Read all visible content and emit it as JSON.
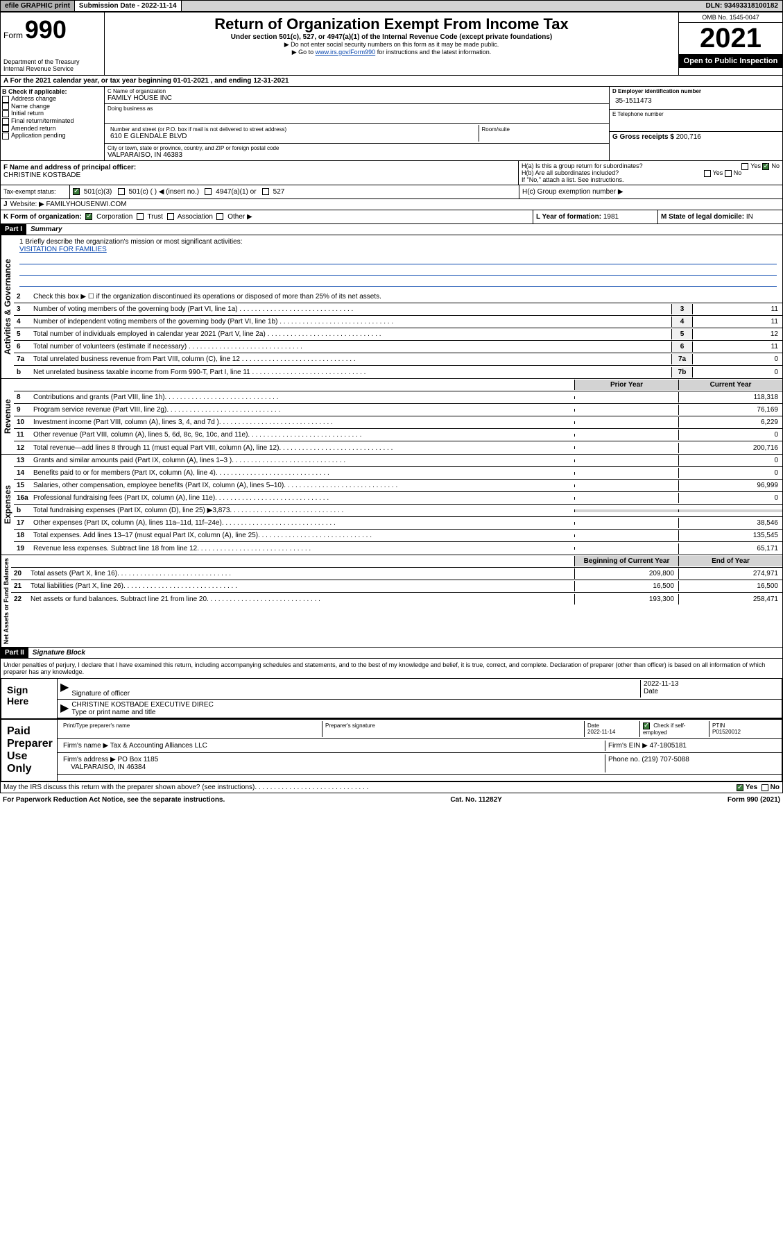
{
  "topbar": {
    "efile": "efile GRAPHIC print",
    "submission": "Submission Date - 2022-11-14",
    "dln": "DLN: 93493318100182"
  },
  "header": {
    "form": "Form",
    "num": "990",
    "dept": "Department of the Treasury\nInternal Revenue Service",
    "title": "Return of Organization Exempt From Income Tax",
    "sub1": "Under section 501(c), 527, or 4947(a)(1) of the Internal Revenue Code (except private foundations)",
    "sub2": "▶ Do not enter social security numbers on this form as it may be made public.",
    "sub3_pre": "▶ Go to ",
    "sub3_link": "www.irs.gov/Form990",
    "sub3_post": " for instructions and the latest information.",
    "omb": "OMB No. 1545-0047",
    "year": "2021",
    "open": "Open to Public Inspection"
  },
  "sectionA": {
    "text": "A For the 2021 calendar year, or tax year beginning 01-01-2021    , and ending 12-31-2021"
  },
  "colB": {
    "title": "B Check if applicable:",
    "items": [
      "Address change",
      "Name change",
      "Initial return",
      "Final return/terminated",
      "Amended return",
      "Application pending"
    ]
  },
  "colC": {
    "name_lbl": "C Name of organization",
    "name": "FAMILY HOUSE INC",
    "dba_lbl": "Doing business as",
    "street_lbl": "Number and street (or P.O. box if mail is not delivered to street address)",
    "room_lbl": "Room/suite",
    "street": "610 E GLENDALE BLVD",
    "city_lbl": "City or town, state or province, country, and ZIP or foreign postal code",
    "city": "VALPARAISO, IN  46383"
  },
  "colD": {
    "ein_lbl": "D Employer identification number",
    "ein": "35-1511473",
    "phone_lbl": "E Telephone number",
    "gross_lbl": "G Gross receipts $ ",
    "gross": "200,716"
  },
  "rowF": {
    "lbl": "F Name and address of principal officer:",
    "val": "CHRISTINE KOSTBADE"
  },
  "rowH": {
    "a": "H(a)  Is this a group return for subordinates?",
    "b": "H(b)  Are all subordinates included?",
    "note": "If \"No,\" attach a list. See instructions.",
    "c": "H(c)  Group exemption number ▶",
    "yes": "Yes",
    "no": "No"
  },
  "rowI": {
    "lbl": "Tax-exempt status:",
    "opts": [
      "501(c)(3)",
      "501(c) (   ) ◀ (insert no.)",
      "4947(a)(1) or",
      "527"
    ]
  },
  "rowJ": {
    "lbl": "Website: ▶",
    "val": "FAMILYHOUSENWI.COM"
  },
  "rowK": {
    "lbl": "K Form of organization:",
    "opts": [
      "Corporation",
      "Trust",
      "Association",
      "Other ▶"
    ]
  },
  "rowL": {
    "lbl": "L Year of formation: ",
    "val": "1981"
  },
  "rowM": {
    "lbl": "M State of legal domicile: ",
    "val": "IN"
  },
  "part1": {
    "hdr": "Part I",
    "title": "Summary"
  },
  "mission": {
    "lbl": "1  Briefly describe the organization's mission or most significant activities:",
    "text": "VISITATION FOR FAMILIES"
  },
  "gov": {
    "side": "Activities & Governance",
    "rows": [
      {
        "n": "2",
        "d": "Check this box ▶ ☐  if the organization discontinued its operations or disposed of more than 25% of its net assets.",
        "b": "",
        "v": ""
      },
      {
        "n": "3",
        "d": "Number of voting members of the governing body (Part VI, line 1a)",
        "b": "3",
        "v": "11"
      },
      {
        "n": "4",
        "d": "Number of independent voting members of the governing body (Part VI, line 1b)",
        "b": "4",
        "v": "11"
      },
      {
        "n": "5",
        "d": "Total number of individuals employed in calendar year 2021 (Part V, line 2a)",
        "b": "5",
        "v": "12"
      },
      {
        "n": "6",
        "d": "Total number of volunteers (estimate if necessary)",
        "b": "6",
        "v": "11"
      },
      {
        "n": "7a",
        "d": "Total unrelated business revenue from Part VIII, column (C), line 12",
        "b": "7a",
        "v": "0"
      },
      {
        "n": "b",
        "d": "Net unrelated business taxable income from Form 990-T, Part I, line 11",
        "b": "7b",
        "v": "0"
      }
    ]
  },
  "rev": {
    "side": "Revenue",
    "hdr1": "Prior Year",
    "hdr2": "Current Year",
    "rows": [
      {
        "n": "8",
        "d": "Contributions and grants (Part VIII, line 1h)",
        "p": "",
        "c": "118,318"
      },
      {
        "n": "9",
        "d": "Program service revenue (Part VIII, line 2g)",
        "p": "",
        "c": "76,169"
      },
      {
        "n": "10",
        "d": "Investment income (Part VIII, column (A), lines 3, 4, and 7d )",
        "p": "",
        "c": "6,229"
      },
      {
        "n": "11",
        "d": "Other revenue (Part VIII, column (A), lines 5, 6d, 8c, 9c, 10c, and 11e)",
        "p": "",
        "c": "0"
      },
      {
        "n": "12",
        "d": "Total revenue—add lines 8 through 11 (must equal Part VIII, column (A), line 12)",
        "p": "",
        "c": "200,716"
      }
    ]
  },
  "exp": {
    "side": "Expenses",
    "rows": [
      {
        "n": "13",
        "d": "Grants and similar amounts paid (Part IX, column (A), lines 1–3 )",
        "p": "",
        "c": "0"
      },
      {
        "n": "14",
        "d": "Benefits paid to or for members (Part IX, column (A), line 4)",
        "p": "",
        "c": "0"
      },
      {
        "n": "15",
        "d": "Salaries, other compensation, employee benefits (Part IX, column (A), lines 5–10)",
        "p": "",
        "c": "96,999"
      },
      {
        "n": "16a",
        "d": "Professional fundraising fees (Part IX, column (A), line 11e)",
        "p": "",
        "c": "0"
      },
      {
        "n": "b",
        "d": "Total fundraising expenses (Part IX, column (D), line 25) ▶3,873",
        "p": "shaded",
        "c": "shaded"
      },
      {
        "n": "17",
        "d": "Other expenses (Part IX, column (A), lines 11a–11d, 11f–24e)",
        "p": "",
        "c": "38,546"
      },
      {
        "n": "18",
        "d": "Total expenses. Add lines 13–17 (must equal Part IX, column (A), line 25)",
        "p": "",
        "c": "135,545"
      },
      {
        "n": "19",
        "d": "Revenue less expenses. Subtract line 18 from line 12",
        "p": "",
        "c": "65,171"
      }
    ]
  },
  "net": {
    "side": "Net Assets or Fund Balances",
    "hdr1": "Beginning of Current Year",
    "hdr2": "End of Year",
    "rows": [
      {
        "n": "20",
        "d": "Total assets (Part X, line 16)",
        "p": "209,800",
        "c": "274,971"
      },
      {
        "n": "21",
        "d": "Total liabilities (Part X, line 26)",
        "p": "16,500",
        "c": "16,500"
      },
      {
        "n": "22",
        "d": "Net assets or fund balances. Subtract line 21 from line 20",
        "p": "193,300",
        "c": "258,471"
      }
    ]
  },
  "part2": {
    "hdr": "Part II",
    "title": "Signature Block"
  },
  "penalties": "Under penalties of perjury, I declare that I have examined this return, including accompanying schedules and statements, and to the best of my knowledge and belief, it is true, correct, and complete. Declaration of preparer (other than officer) is based on all information of which preparer has any knowledge.",
  "sign": {
    "here": "Sign Here",
    "sig_lbl": "Signature of officer",
    "date": "2022-11-13",
    "date_lbl": "Date",
    "name": "CHRISTINE KOSTBADE  EXECUTIVE DIREC",
    "name_lbl": "Type or print name and title"
  },
  "paid": {
    "title": "Paid Preparer Use Only",
    "h1": "Print/Type preparer's name",
    "h2": "Preparer's signature",
    "h3": "Date",
    "h4": "Check ☑ if self-employed",
    "h5": "PTIN",
    "date": "2022-11-14",
    "ptin": "P01520012",
    "firm_lbl": "Firm's name    ▶",
    "firm": "Tax & Accounting Alliances LLC",
    "ein_lbl": "Firm's EIN ▶",
    "ein": "47-1805181",
    "addr_lbl": "Firm's address ▶",
    "addr1": "PO Box 1185",
    "addr2": "VALPARAISO, IN  46384",
    "phone_lbl": "Phone no.",
    "phone": "(219) 707-5088"
  },
  "discuss": "May the IRS discuss this return with the preparer shown above? (see instructions)",
  "footer": {
    "left": "For Paperwork Reduction Act Notice, see the separate instructions.",
    "mid": "Cat. No. 11282Y",
    "right": "Form 990 (2021)"
  }
}
